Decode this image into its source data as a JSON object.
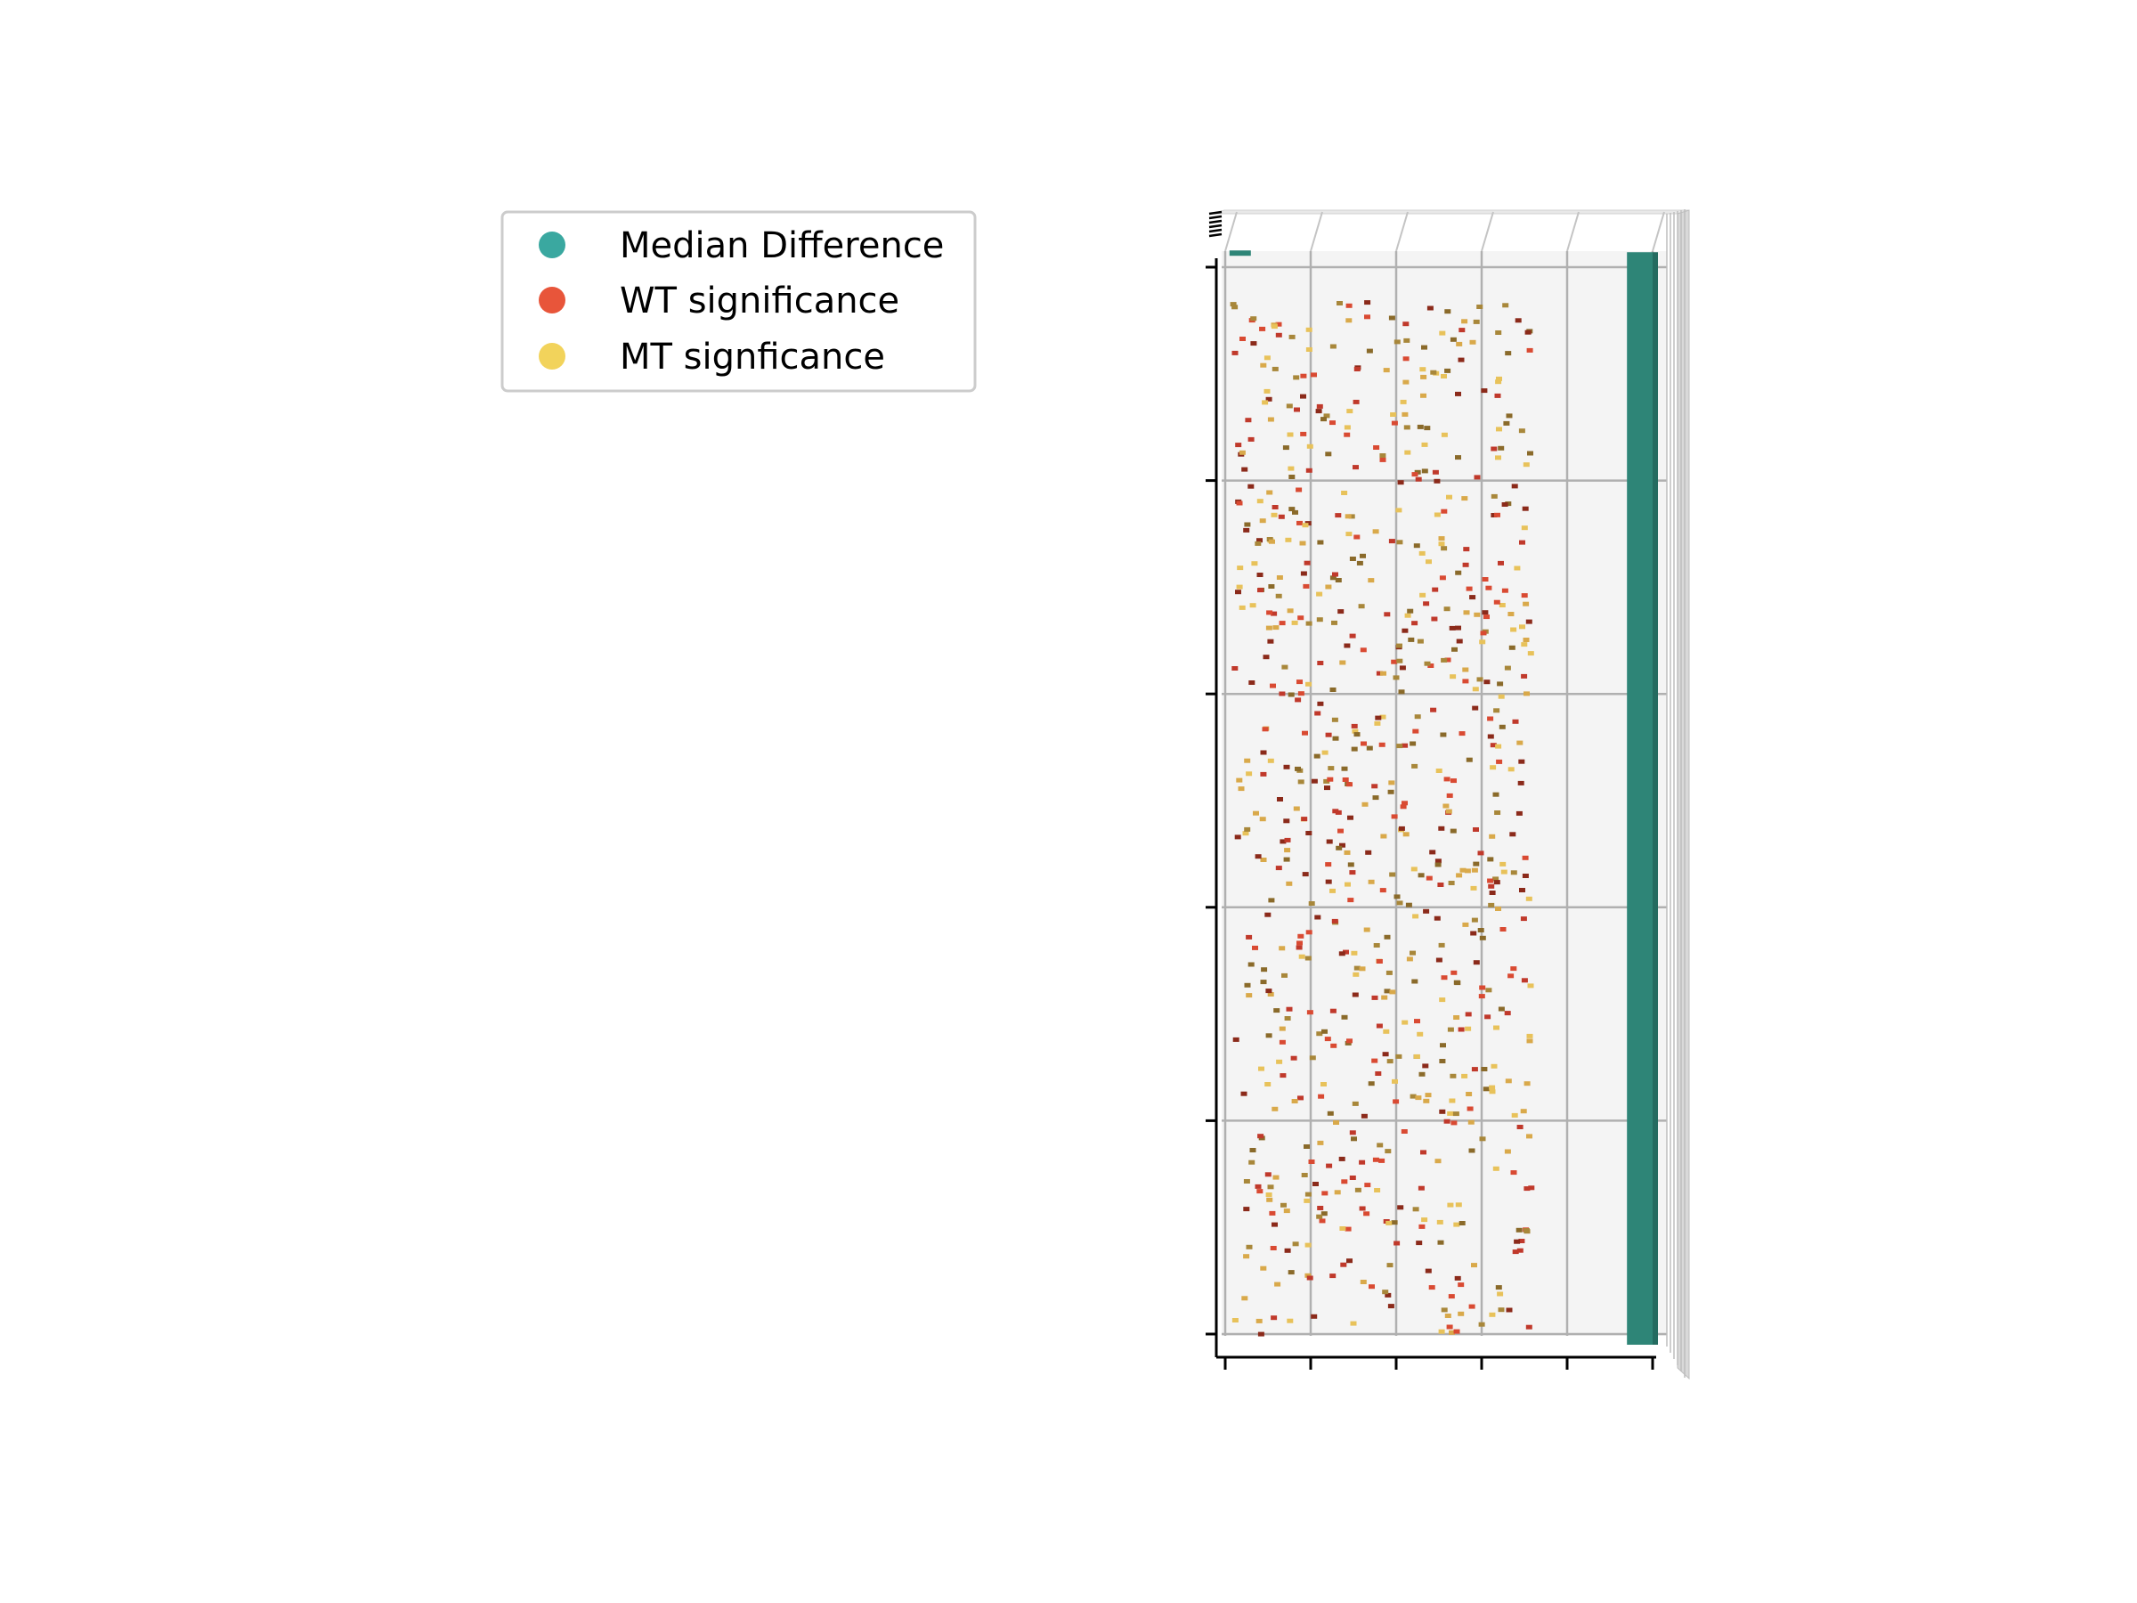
{
  "chart_data": {
    "type": "bar3d",
    "view": "top-down",
    "grid": true,
    "legend": {
      "placement": "upper-left",
      "entries": [
        {
          "label": "Median Difference",
          "color": "#3aa8a0"
        },
        {
          "label": "WT significance",
          "color": "#e8553a"
        },
        {
          "label": "MT signficance",
          "color": "#f2d35b"
        }
      ]
    },
    "xlim": [
      0,
      5
    ],
    "ylim": [
      0,
      5
    ],
    "x_ticks": [
      0,
      1,
      2,
      3,
      4,
      5
    ],
    "y_ticks": [
      0,
      1,
      2,
      3,
      4,
      5
    ],
    "median_difference": {
      "color": "#2e8577",
      "x": 4.85,
      "width": 0.3,
      "y_range": [
        -0.05,
        5.07
      ]
    },
    "legend_marker": {
      "color": "#2e8577",
      "x": 0.05,
      "y": 5.07,
      "width": 0.25
    },
    "bar_colors": [
      "#c0392b",
      "#8b2a1a",
      "#a8873a",
      "#8a6a2a",
      "#e8c25a",
      "#d9a94a",
      "#d94a32"
    ],
    "bars": {
      "count": 760,
      "x_range": [
        0.05,
        3.55
      ],
      "y_range": [
        0.0,
        4.85
      ],
      "seed": 42
    }
  }
}
